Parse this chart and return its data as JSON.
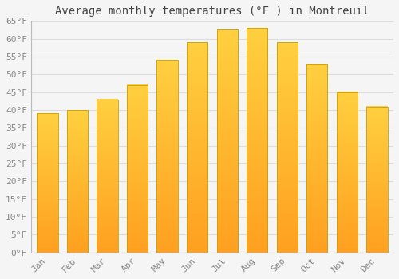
{
  "title": "Average monthly temperatures (°F ) in Montreuil",
  "months": [
    "Jan",
    "Feb",
    "Mar",
    "Apr",
    "May",
    "Jun",
    "Jul",
    "Aug",
    "Sep",
    "Oct",
    "Nov",
    "Dec"
  ],
  "values": [
    39,
    40,
    43,
    47,
    54,
    59,
    62.5,
    63,
    59,
    53,
    45,
    41
  ],
  "bar_color_bottom": "#FFA020",
  "bar_color_top": "#FFD040",
  "ylim": [
    0,
    65
  ],
  "yticks": [
    0,
    5,
    10,
    15,
    20,
    25,
    30,
    35,
    40,
    45,
    50,
    55,
    60,
    65
  ],
  "ytick_labels": [
    "0°F",
    "5°F",
    "10°F",
    "15°F",
    "20°F",
    "25°F",
    "30°F",
    "35°F",
    "40°F",
    "45°F",
    "50°F",
    "55°F",
    "60°F",
    "65°F"
  ],
  "background_color": "#f5f5f5",
  "grid_color": "#dddddd",
  "bar_edge_color": "#C8A000",
  "title_fontsize": 10,
  "tick_fontsize": 8,
  "font_family": "monospace",
  "bar_width": 0.7
}
